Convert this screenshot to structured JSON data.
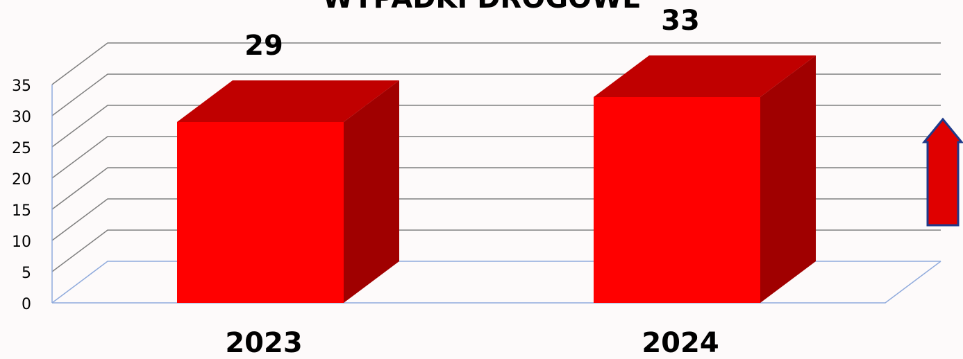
{
  "chart_data": {
    "type": "bar3d",
    "title": "WYPADKI DROGOWE",
    "categories": [
      "2023",
      "2024"
    ],
    "values": [
      29,
      33
    ],
    "color": "#ff0000",
    "ylim": [
      0,
      35
    ],
    "yticks": [
      0,
      5,
      10,
      15,
      20,
      25,
      30,
      35
    ],
    "grid": true
  }
}
